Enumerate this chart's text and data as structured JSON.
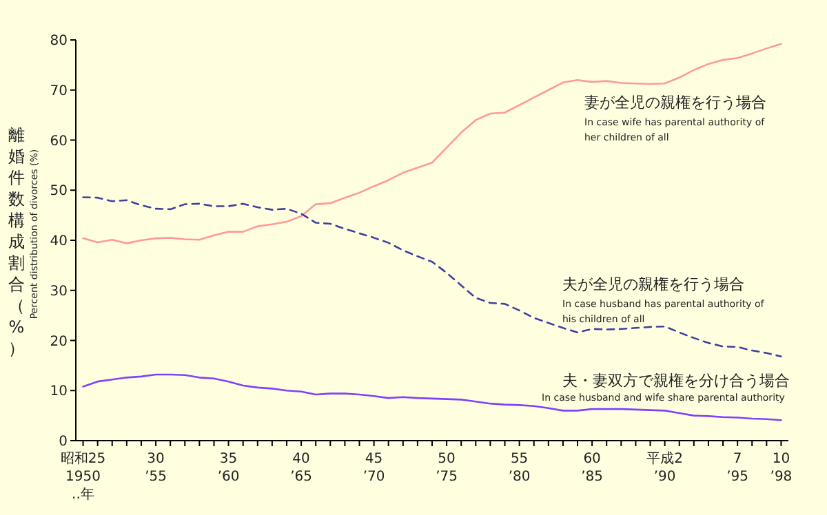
{
  "chart_data": {
    "type": "line",
    "ylabel": "離婚件数構成割合（%）",
    "categories": [
      "昭和25\n1950\n‥年",
      null,
      null,
      null,
      null,
      "30\n’55",
      null,
      null,
      null,
      null,
      "35\n’60",
      null,
      null,
      null,
      null,
      "40\n’65",
      null,
      null,
      null,
      null,
      "45\n’70",
      null,
      null,
      null,
      null,
      "50\n’75",
      null,
      null,
      null,
      null,
      "55\n’80",
      null,
      null,
      null,
      null,
      "60\n’85",
      null,
      null,
      null,
      null,
      "平成2\n’90",
      null,
      null,
      null,
      null,
      "7\n’95",
      null,
      null,
      "10\n’98"
    ],
    "ylim": [
      0,
      80
    ],
    "yticks": [
      0,
      10,
      20,
      30,
      40,
      50,
      60,
      70,
      80
    ],
    "grid": false,
    "legend": false,
    "marker": "none",
    "series": [
      {
        "name": "妻が全児の親権を行う場合",
        "color": "#ff9999",
        "line_style": "solid",
        "values": [
          40.4,
          39.6,
          40.1,
          39.4,
          40.0,
          40.4,
          40.5,
          40.2,
          40.1,
          41.0,
          41.7,
          41.7,
          42.8,
          43.2,
          43.7,
          44.8,
          47.2,
          47.4,
          48.5,
          49.5,
          50.8,
          52.0,
          53.5,
          54.5,
          55.5,
          58.5,
          61.5,
          64.0,
          65.3,
          65.5,
          67.0,
          68.5,
          70.0,
          71.5,
          72.0,
          71.6,
          71.8,
          71.4,
          71.3,
          71.2,
          71.3,
          72.5,
          74.0,
          75.2,
          76.0,
          76.4,
          77.3,
          78.3,
          79.2
        ]
      },
      {
        "name": "夫が全児の親権を行う場合",
        "color": "#4040a0",
        "line_style": "dashed",
        "values": [
          48.6,
          48.5,
          47.8,
          48.0,
          47.0,
          46.3,
          46.2,
          47.2,
          47.3,
          46.8,
          46.8,
          47.3,
          46.6,
          46.1,
          46.3,
          45.3,
          43.5,
          43.3,
          42.3,
          41.4,
          40.5,
          39.5,
          38.0,
          36.8,
          35.7,
          33.5,
          31.0,
          28.5,
          27.5,
          27.3,
          26.0,
          24.5,
          23.5,
          22.5,
          21.6,
          22.3,
          22.2,
          22.3,
          22.5,
          22.7,
          22.8,
          21.6,
          20.5,
          19.5,
          18.8,
          18.7,
          18.0,
          17.5,
          16.8
        ]
      },
      {
        "name": "夫・妻双方で親権を分け合う場合",
        "color": "#8040ff",
        "line_style": "solid",
        "values": [
          10.8,
          11.8,
          12.2,
          12.6,
          12.8,
          13.2,
          13.2,
          13.1,
          12.6,
          12.4,
          11.8,
          11.0,
          10.6,
          10.4,
          10.0,
          9.8,
          9.2,
          9.4,
          9.4,
          9.2,
          8.9,
          8.5,
          8.7,
          8.5,
          8.4,
          8.3,
          8.2,
          7.8,
          7.4,
          7.2,
          7.1,
          6.9,
          6.5,
          6.0,
          6.0,
          6.3,
          6.3,
          6.3,
          6.2,
          6.1,
          6.0,
          5.5,
          5.0,
          4.9,
          4.7,
          4.6,
          4.4,
          4.3,
          4.1
        ]
      }
    ],
    "annotations": [
      "Percent distribution of divorces (%)",
      "In case wife has parental authority of\nher children of all",
      "In case husband has parental authority of\nhis children of all",
      "In case husband and wife share parental authority"
    ]
  }
}
